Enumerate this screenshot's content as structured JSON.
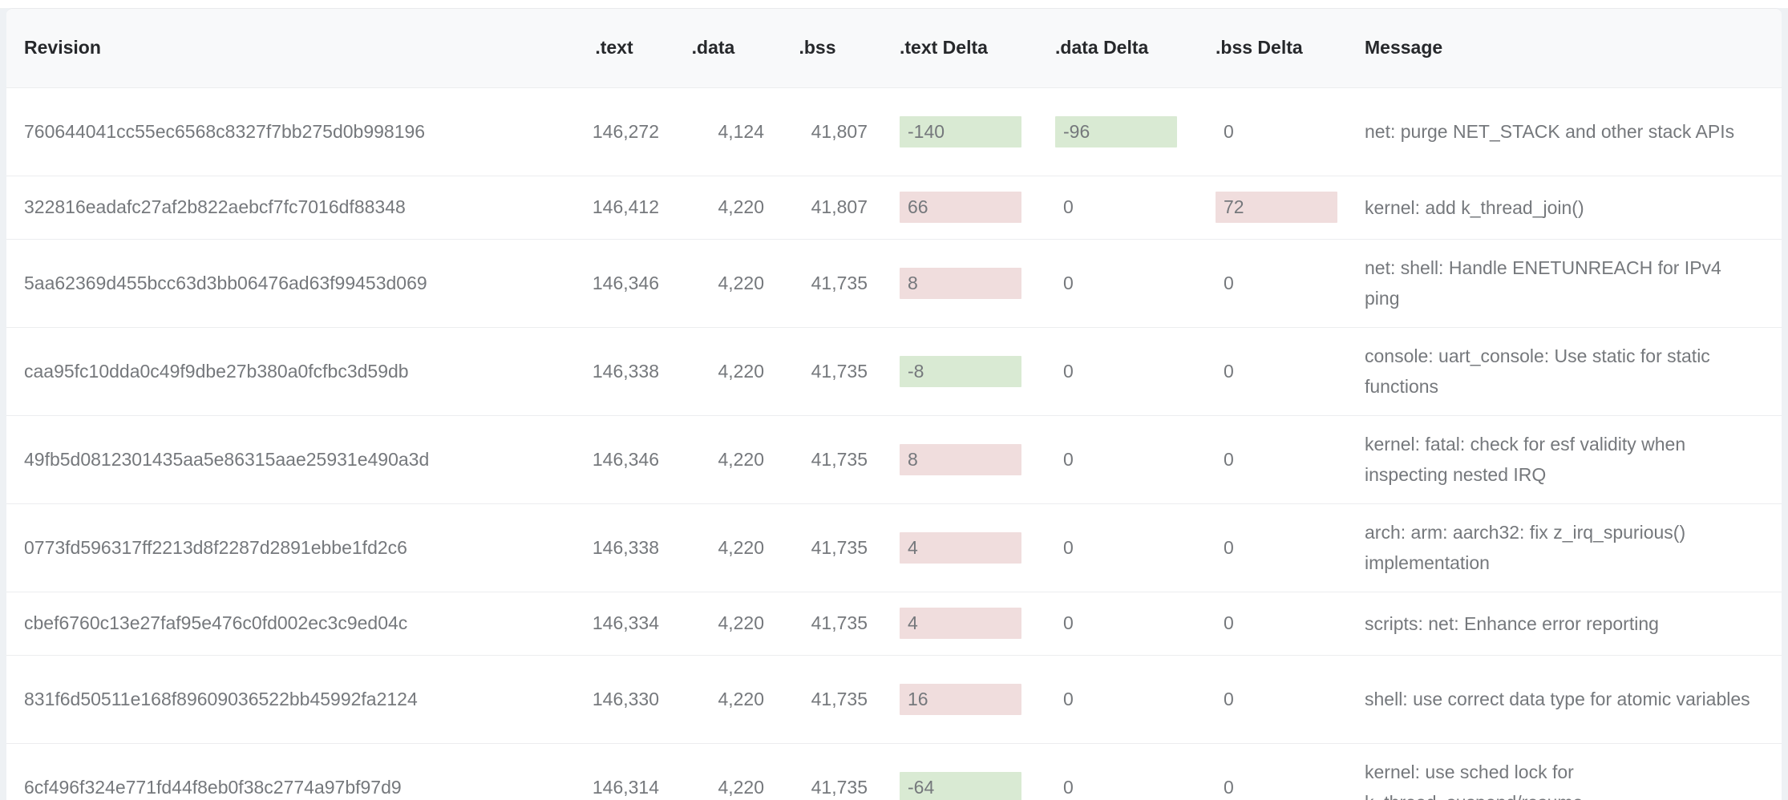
{
  "table": {
    "columns": {
      "revision": "Revision",
      "text": ".text",
      "data": ".data",
      "bss": ".bss",
      "text_delta": ".text Delta",
      "data_delta": ".data Delta",
      "bss_delta": ".bss Delta",
      "message": "Message"
    },
    "rows": [
      {
        "revision": "760644041cc55ec6568c8327f7bb275d0b998196",
        "text": "146,272",
        "data": "4,124",
        "bss": "41,807",
        "text_delta": "-140",
        "data_delta": "-96",
        "bss_delta": "0",
        "message": "net: purge NET_STACK and other stack APIs"
      },
      {
        "revision": "322816eadafc27af2b822aebcf7fc7016df88348",
        "text": "146,412",
        "data": "4,220",
        "bss": "41,807",
        "text_delta": "66",
        "data_delta": "0",
        "bss_delta": "72",
        "message": "kernel: add k_thread_join()"
      },
      {
        "revision": "5aa62369d455bcc63d3bb06476ad63f99453d069",
        "text": "146,346",
        "data": "4,220",
        "bss": "41,735",
        "text_delta": "8",
        "data_delta": "0",
        "bss_delta": "0",
        "message": "net: shell: Handle ENETUNREACH for IPv4 ping"
      },
      {
        "revision": "caa95fc10dda0c49f9dbe27b380a0fcfbc3d59db",
        "text": "146,338",
        "data": "4,220",
        "bss": "41,735",
        "text_delta": "-8",
        "data_delta": "0",
        "bss_delta": "0",
        "message": "console: uart_console: Use static for static functions"
      },
      {
        "revision": "49fb5d0812301435aa5e86315aae25931e490a3d",
        "text": "146,346",
        "data": "4,220",
        "bss": "41,735",
        "text_delta": "8",
        "data_delta": "0",
        "bss_delta": "0",
        "message": "kernel: fatal: check for esf validity when inspecting nested IRQ"
      },
      {
        "revision": "0773fd596317ff2213d8f2287d2891ebbe1fd2c6",
        "text": "146,338",
        "data": "4,220",
        "bss": "41,735",
        "text_delta": "4",
        "data_delta": "0",
        "bss_delta": "0",
        "message": "arch: arm: aarch32: fix z_irq_spurious() implementation"
      },
      {
        "revision": "cbef6760c13e27faf95e476c0fd002ec3c9ed04c",
        "text": "146,334",
        "data": "4,220",
        "bss": "41,735",
        "text_delta": "4",
        "data_delta": "0",
        "bss_delta": "0",
        "message": "scripts: net: Enhance error reporting"
      },
      {
        "revision": "831f6d50511e168f89609036522bb45992fa2124",
        "text": "146,330",
        "data": "4,220",
        "bss": "41,735",
        "text_delta": "16",
        "data_delta": "0",
        "bss_delta": "0",
        "message": "shell: use correct data type for atomic variables"
      },
      {
        "revision": "6cf496f324e771fd44f8eb0f38c2774a97bf97d9",
        "text": "146,314",
        "data": "4,220",
        "bss": "41,735",
        "text_delta": "-64",
        "data_delta": "0",
        "bss_delta": "0",
        "message": "kernel: use sched lock for k_thread_suspend/resume"
      }
    ]
  },
  "colors": {
    "delta_decrease_bg": "#d9ead3",
    "delta_increase_bg": "#f0dddd",
    "header_bg": "#f8f9fa",
    "row_separator": "#ecedef",
    "body_text": "#75787c",
    "header_text": "#26282b",
    "page_background": "#eef1f4"
  }
}
